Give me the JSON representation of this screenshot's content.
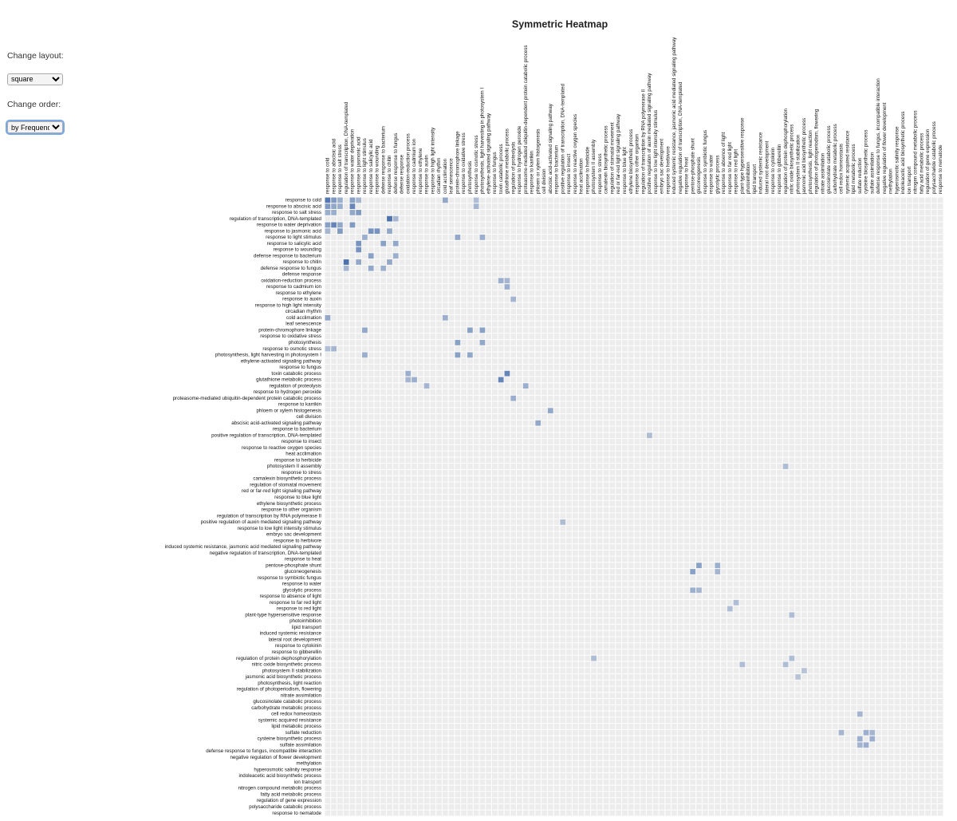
{
  "title": "Symmetric Heatmap",
  "controls": {
    "layout_label": "Change layout:",
    "layout_option": "square",
    "order_label": "Change order:",
    "order_option": "by Frequency"
  },
  "chart_data": {
    "type": "heatmap",
    "labels": [
      "response to cold",
      "response to abscisic acid",
      "response to salt stress",
      "regulation of transcription, DNA-templated",
      "response to water deprivation",
      "response to jasmonic acid",
      "response to light stimulus",
      "response to salicylic acid",
      "response to wounding",
      "defense response to bacterium",
      "response to chitin",
      "defense response to fungus",
      "defense response",
      "oxidation-reduction process",
      "response to cadmium ion",
      "response to ethylene",
      "response to auxin",
      "response to high light intensity",
      "circadian rhythm",
      "cold acclimation",
      "leaf senescence",
      "protein-chromophore linkage",
      "response to oxidative stress",
      "photosynthesis",
      "response to osmotic stress",
      "photosynthesis, light harvesting in photosystem I",
      "ethylene-activated signaling pathway",
      "response to fungus",
      "toxin catabolic process",
      "glutathione metabolic process",
      "regulation of proteolysis",
      "response to hydrogen peroxide",
      "proteasome-mediated ubiquitin-dependent protein catabolic process",
      "response to karrikin",
      "phloem or xylem histogenesis",
      "cell division",
      "abscisic acid-activated signaling pathway",
      "response to bacterium",
      "positive regulation of transcription, DNA-templated",
      "response to insect",
      "response to reactive oxygen species",
      "heat acclimation",
      "response to herbicide",
      "photosystem II assembly",
      "response to stress",
      "camalexin biosynthetic process",
      "regulation of stomatal movement",
      "red or far-red light signaling pathway",
      "response to blue light",
      "ethylene biosynthetic process",
      "response to other organism",
      "regulation of transcription by RNA polymerase II",
      "positive regulation of auxin mediated signaling pathway",
      "response to low light intensity stimulus",
      "embryo sac development",
      "response to herbivore",
      "induced systemic resistance, jasmonic acid mediated signaling pathway",
      "negative regulation of transcription, DNA-templated",
      "response to heat",
      "pentose-phosphate shunt",
      "gluconeogenesis",
      "response to symbiotic fungus",
      "response to water",
      "glycolytic process",
      "response to absence of light",
      "response to far red light",
      "response to red light",
      "plant-type hypersensitive response",
      "photoinhibition",
      "lipid transport",
      "induced systemic resistance",
      "lateral root development",
      "response to cytokinin",
      "response to gibberellin",
      "regulation of protein dephosphorylation",
      "nitric oxide biosynthetic process",
      "photosystem II stabilization",
      "jasmonic acid biosynthetic process",
      "photosynthesis, light reaction",
      "regulation of photoperiodism, flowering",
      "nitrate assimilation",
      "glucosinolate catabolic process",
      "carbohydrate metabolic process",
      "cell redox homeostasis",
      "systemic acquired resistance",
      "lipid metabolic process",
      "sulfate reduction",
      "cysteine biosynthetic process",
      "sulfate assimilation",
      "defense response to fungus, incompatible interaction",
      "negative regulation of flower development",
      "methylation",
      "hyperosmotic salinity response",
      "indoleacetic acid biosynthetic process",
      "ion transport",
      "nitrogen compound metabolic process",
      "fatty acid metabolic process",
      "regulation of gene expression",
      "polysaccharide catabolic process",
      "response to nematode"
    ],
    "value_range": [
      0,
      1
    ],
    "color_low": "#ececec",
    "color_high": "#3a63a6",
    "cells": [
      [
        0,
        0,
        0.85
      ],
      [
        0,
        1,
        0.6
      ],
      [
        0,
        2,
        0.45
      ],
      [
        0,
        4,
        0.55
      ],
      [
        0,
        5,
        0.4
      ],
      [
        0,
        19,
        0.5
      ],
      [
        0,
        24,
        0.35
      ],
      [
        1,
        1,
        0.5
      ],
      [
        1,
        2,
        0.45
      ],
      [
        1,
        4,
        0.75
      ],
      [
        1,
        24,
        0.4
      ],
      [
        2,
        4,
        0.5
      ],
      [
        2,
        5,
        0.6
      ],
      [
        3,
        10,
        0.9
      ],
      [
        3,
        11,
        0.4
      ],
      [
        4,
        4,
        0.6
      ],
      [
        5,
        7,
        0.65
      ],
      [
        5,
        8,
        0.65
      ],
      [
        5,
        10,
        0.5
      ],
      [
        6,
        6,
        0.45
      ],
      [
        6,
        21,
        0.5
      ],
      [
        6,
        25,
        0.45
      ],
      [
        7,
        9,
        0.55
      ],
      [
        7,
        11,
        0.5
      ],
      [
        9,
        11,
        0.45
      ],
      [
        10,
        10,
        0.5
      ],
      [
        13,
        28,
        0.45
      ],
      [
        13,
        29,
        0.4
      ],
      [
        14,
        29,
        0.45
      ],
      [
        16,
        30,
        0.4
      ],
      [
        19,
        19,
        0.45
      ],
      [
        21,
        23,
        0.55
      ],
      [
        21,
        25,
        0.55
      ],
      [
        23,
        25,
        0.5
      ],
      [
        28,
        29,
        0.75
      ],
      [
        30,
        32,
        0.45
      ],
      [
        34,
        36,
        0.5
      ],
      [
        38,
        52,
        0.35
      ],
      [
        43,
        74,
        0.35
      ],
      [
        59,
        60,
        0.55
      ],
      [
        59,
        63,
        0.45
      ],
      [
        60,
        63,
        0.4
      ],
      [
        65,
        66,
        0.35
      ],
      [
        67,
        75,
        0.35
      ],
      [
        74,
        75,
        0.35
      ],
      [
        76,
        77,
        0.3
      ],
      [
        83,
        86,
        0.4
      ],
      [
        86,
        87,
        0.45
      ],
      [
        86,
        88,
        0.4
      ],
      [
        87,
        88,
        0.45
      ]
    ]
  }
}
